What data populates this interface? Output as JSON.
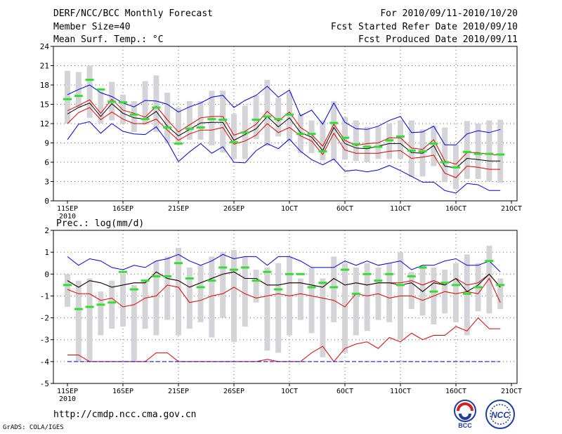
{
  "header": {
    "title": "DERF/NCC/BCC Monthly Forecast",
    "member": "Member Size=40",
    "variable": "Mean Surf. Temp.: °C",
    "period": "For 2010/09/11-2010/10/20",
    "start": "Fcst Started Refer Date 2010/09/10",
    "produced": "Fcst Produced Date 2010/09/11"
  },
  "footer": {
    "url": "http://cmdp.ncc.cma.gov.cn",
    "grads": "GrADS: COLA/IGES",
    "logo1": "BCC",
    "logo2": "NCC"
  },
  "colors": {
    "ensmean": "#000000",
    "spread": "#dd0000",
    "extreme": "#0000dd",
    "box": "#d4d4d8",
    "obs": "#33dd33",
    "grid": "#666666"
  },
  "chart_data": [
    {
      "type": "box-line",
      "title": "Mean Surf. Temp.: °C",
      "x_dates": [
        "11SEP",
        "12SEP",
        "13SEP",
        "14SEP",
        "15SEP",
        "16SEP",
        "17SEP",
        "18SEP",
        "19SEP",
        "20SEP",
        "21SEP",
        "22SEP",
        "23SEP",
        "24SEP",
        "25SEP",
        "26SEP",
        "27SEP",
        "28SEP",
        "29SEP",
        "30SEP",
        "1OCT",
        "2OCT",
        "3OCT",
        "4OCT",
        "5OCT",
        "6OCT",
        "7OCT",
        "8OCT",
        "9OCT",
        "10OCT",
        "11OCT",
        "12OCT",
        "13OCT",
        "14OCT",
        "15OCT",
        "16OCT",
        "17OCT",
        "18OCT",
        "19OCT",
        "20OCT"
      ],
      "xticks": [
        "11SEP",
        "16SEP",
        "21SEP",
        "26SEP",
        "1OCT",
        "6OCT",
        "11OCT",
        "16OCT",
        "21OCT"
      ],
      "year_label": "2010",
      "ylim": [
        0,
        24
      ],
      "yticks": [
        0,
        3,
        6,
        9,
        12,
        15,
        18,
        21,
        24
      ],
      "series": [
        {
          "name": "max",
          "values": [
            16.5,
            17.3,
            18,
            16.8,
            16.2,
            15.2,
            14.6,
            15.6,
            15.5,
            15,
            13.8,
            14.6,
            15.2,
            16.1,
            16.4,
            14.5,
            15.6,
            16.4,
            17.8,
            16.1,
            17.2,
            13.2,
            14.1,
            11.9,
            15.2,
            12.2,
            11.2,
            11.1,
            11.6,
            12.5,
            13.1,
            10.6,
            10.7,
            11.6,
            8.7,
            8.7,
            10.4,
            10.9,
            10.6,
            11.1
          ]
        },
        {
          "name": "upper",
          "values": [
            14,
            14.8,
            15.7,
            13.6,
            15.8,
            14.1,
            13.6,
            13,
            14.7,
            12.6,
            10.7,
            11.8,
            12.9,
            13.1,
            13.1,
            10.2,
            10.8,
            11.9,
            13.9,
            12.4,
            13.8,
            11.4,
            10.3,
            8.5,
            11.9,
            9.4,
            8.6,
            8.9,
            9,
            9.8,
            9.8,
            8.2,
            8,
            9.5,
            6.2,
            5.7,
            7.5,
            7.5,
            7.2,
            7.1
          ]
        },
        {
          "name": "mean",
          "values": [
            13.5,
            14.5,
            15.2,
            13.1,
            15.1,
            13.6,
            12.9,
            12.7,
            13.9,
            11.6,
            10.1,
            11.1,
            12.1,
            12.2,
            12.2,
            9.4,
            10.3,
            11.2,
            13.1,
            11.5,
            12.9,
            10.6,
            9.9,
            7.8,
            11.4,
            8.9,
            8.2,
            8.1,
            8.5,
            8.9,
            8.9,
            7.5,
            7.4,
            8.6,
            5.4,
            5.1,
            6.6,
            6.4,
            6.2,
            6.2
          ]
        },
        {
          "name": "lower",
          "values": [
            12,
            13.7,
            14.5,
            12.6,
            13.8,
            12.7,
            12,
            12,
            12.7,
            11,
            9.4,
            10.4,
            11,
            11,
            11.4,
            8.8,
            9.3,
            10.2,
            12,
            10.6,
            11.4,
            10.1,
            9.3,
            7.2,
            10.5,
            7.9,
            7.4,
            7.4,
            7.4,
            7.7,
            7.8,
            6.6,
            6.8,
            7.1,
            4.3,
            3.6,
            5.4,
            5.2,
            4.9,
            4.9
          ]
        },
        {
          "name": "min",
          "values": [
            9.5,
            11.9,
            12.3,
            10.5,
            12,
            10.8,
            10.4,
            10.3,
            11.5,
            9.2,
            6.1,
            7.6,
            8.9,
            7.4,
            8.4,
            6,
            5.9,
            7.8,
            8.9,
            8.1,
            9.6,
            7.7,
            6.4,
            5.6,
            6.5,
            4.6,
            4.8,
            4.5,
            4.8,
            5.5,
            4.7,
            3.8,
            2.9,
            2.9,
            1.6,
            1.2,
            2.7,
            2.5,
            1.6,
            1.6
          ]
        },
        {
          "name": "box_high",
          "values": [
            20.2,
            20,
            21,
            17,
            18.5,
            16.5,
            15.5,
            18.6,
            19.5,
            16.8,
            14.5,
            15.5,
            15.5,
            17.1,
            17.1,
            13.5,
            14.8,
            16.4,
            18.8,
            16,
            16.8,
            13.5,
            12.5,
            12.5,
            15.5,
            13,
            12.5,
            11.5,
            11.5,
            12,
            12.5,
            12.5,
            11.1,
            11.7,
            11.4,
            8.7,
            12.4,
            12,
            12.5,
            12.6
          ]
        },
        {
          "name": "box_low",
          "values": [
            12,
            14.5,
            12.9,
            12,
            12.5,
            12,
            10.7,
            11.8,
            10.7,
            9,
            9,
            9.5,
            9.5,
            8.6,
            7.5,
            6.5,
            6.5,
            9.6,
            8.5,
            10,
            9.2,
            7.4,
            7.4,
            6.3,
            6.3,
            6.4,
            6.2,
            6,
            6.5,
            6.5,
            6.5,
            3.7,
            3.8,
            5.4,
            2.9,
            1.8,
            3.4,
            3.4,
            3,
            2.8
          ]
        },
        {
          "name": "observed",
          "values": [
            15.8,
            16.3,
            18.8,
            17.3,
            15.4,
            15.3,
            13.4,
            12.7,
            14.5,
            11.4,
            8.9,
            11.2,
            11.4,
            12.7,
            12.6,
            9.1,
            10.6,
            12.6,
            13.1,
            12.7,
            13.4,
            10.4,
            10.4,
            7.7,
            12.1,
            9.8,
            8.8,
            8.4,
            8.4,
            9.4,
            10,
            7.8,
            7.7,
            8.9,
            6,
            5.2,
            7.6,
            7.3,
            7.3,
            7.2
          ]
        }
      ]
    },
    {
      "type": "box-line",
      "title": "Prec.: log(mm/d)",
      "xticks": [
        "11SEP",
        "16SEP",
        "21SEP",
        "26SEP",
        "1OCT",
        "6OCT",
        "11OCT",
        "16OCT",
        "21OCT"
      ],
      "year_label": "2010",
      "ylim": [
        -5,
        2
      ],
      "yticks": [
        -5,
        -4,
        -3,
        -2,
        -1,
        0,
        1,
        2
      ],
      "series": [
        {
          "name": "max",
          "values": [
            0.8,
            0.4,
            0.7,
            0.6,
            0.3,
            0.2,
            0.4,
            0.3,
            0.6,
            0.7,
            0.9,
            0.6,
            0.4,
            0.6,
            0.9,
            0.7,
            0.8,
            0.8,
            0.4,
            0.8,
            0.8,
            0.6,
            0.3,
            0.3,
            0.3,
            0.6,
            0.4,
            0.6,
            0.4,
            0.5,
            0.6,
            0.2,
            0.4,
            0.4,
            0.6,
            0.7,
            0.4,
            0.4,
            0.6,
            0.1
          ]
        },
        {
          "name": "upper",
          "values": [
            -0.3,
            -0.6,
            -0.3,
            -0.4,
            -0.6,
            -0.5,
            -0.4,
            -0.4,
            0.1,
            -0.2,
            -0.3,
            -0.6,
            -0.4,
            -0.2,
            0,
            0.1,
            -0.2,
            -0.2,
            -0.5,
            -0.5,
            -0.4,
            -0.4,
            -0.5,
            -0.6,
            -0.2,
            -0.5,
            -0.4,
            -0.5,
            -0.4,
            -0.4,
            -0.4,
            -0.3,
            -0.5,
            -0.3,
            -0.5,
            -0.2,
            -0.5,
            -0.4,
            0,
            -0.6
          ]
        },
        {
          "name": "mean",
          "values": [
            -0.3,
            -0.6,
            -0.3,
            -0.4,
            -0.6,
            -0.5,
            -0.4,
            -0.4,
            0.1,
            -0.2,
            -0.3,
            -0.6,
            -0.4,
            -0.2,
            0,
            0.1,
            -0.2,
            -0.2,
            -0.5,
            -0.5,
            -0.4,
            -0.4,
            -0.5,
            -0.6,
            -0.2,
            -0.5,
            -0.4,
            -0.5,
            -0.4,
            -0.4,
            -0.5,
            -0.4,
            -0.8,
            -0.4,
            -0.5,
            -0.2,
            -0.8,
            -0.5,
            0,
            -0.6
          ]
        },
        {
          "name": "lower",
          "values": [
            -0.7,
            -0.9,
            -0.9,
            -1.2,
            -1.1,
            -1.5,
            -1.4,
            -1.1,
            -1,
            -0.5,
            -0.6,
            -1.3,
            -1.2,
            -1.0,
            -0.9,
            -0.6,
            -0.9,
            -1.1,
            -1.0,
            -0.9,
            -1.0,
            -0.9,
            -1.0,
            -1.1,
            -1.2,
            -1.5,
            -0.9,
            -1.0,
            -0.9,
            -1.1,
            -1.0,
            -1.0,
            -1.2,
            -1.0,
            -0.8,
            -0.9,
            -0.8,
            -0.9,
            -0.2,
            -1.3
          ]
        },
        {
          "name": "min",
          "values": [
            -3.7,
            -3.7,
            -4,
            -4,
            -4,
            -4,
            -4,
            -4,
            -3.6,
            -3.6,
            -4,
            -4,
            -4,
            -4,
            -4,
            -4,
            -4,
            -4,
            -3.9,
            -4,
            -4,
            -4,
            -3.6,
            -3.3,
            -4,
            -3.4,
            -3.2,
            -3.1,
            -3.4,
            -2.9,
            -3.1,
            -2.7,
            -3,
            -2.8,
            -2.8,
            -2.4,
            -2.6,
            -2.0,
            -2.5,
            -2.5
          ]
        },
        {
          "name": "box_high",
          "values": [
            0,
            -0.3,
            -0.2,
            -0.8,
            -0.3,
            0,
            -0.5,
            -0.3,
            0.6,
            0.8,
            1.2,
            0.3,
            0.4,
            0.8,
            1,
            1.1,
            0.8,
            0.2,
            0.3,
            0.5,
            0.8,
            -0.2,
            0.3,
            -0.2,
            0.8,
            0.5,
            0.3,
            0.5,
            0.3,
            0.5,
            1.0,
            0.1,
            0.4,
            0.3,
            0.2,
            0.5,
            0.9,
            0.5,
            1.3,
            -0.2
          ]
        },
        {
          "name": "box_low",
          "values": [
            -1.5,
            -4,
            -4,
            -2.8,
            -2.5,
            -2.4,
            -4,
            -2.5,
            -2.8,
            -2.1,
            -2.8,
            -2.5,
            -2.2,
            -2.9,
            -2,
            -3.1,
            -2.4,
            -1.3,
            -3.5,
            -3.6,
            -2.8,
            -2.1,
            -2.7,
            -3.8,
            -2.2,
            -3.6,
            -2.8,
            -2.6,
            -2.1,
            -2.2,
            -3,
            -1.6,
            -1.9,
            -2.3,
            -1.8,
            -2.2,
            -2.8,
            -1.7,
            -1.8,
            -1.6
          ]
        },
        {
          "name": "observed",
          "values": [
            -0.5,
            -1.6,
            -1.5,
            -1.4,
            -1.3,
            0.1,
            -0.7,
            -0.3,
            -0.1,
            -0.1,
            0.5,
            -0.2,
            -0.6,
            -0.3,
            0.3,
            0.2,
            0.3,
            -0.3,
            0.1,
            -0.7,
            0,
            0,
            -0.6,
            -0.4,
            -0.6,
            0.2,
            -0.9,
            0,
            -0.3,
            0,
            -0.5,
            -0.1,
            0.3,
            -0.8,
            -0.4,
            -0.5,
            -0.9,
            -0.6,
            0.6,
            -0.5
          ]
        }
      ]
    }
  ]
}
